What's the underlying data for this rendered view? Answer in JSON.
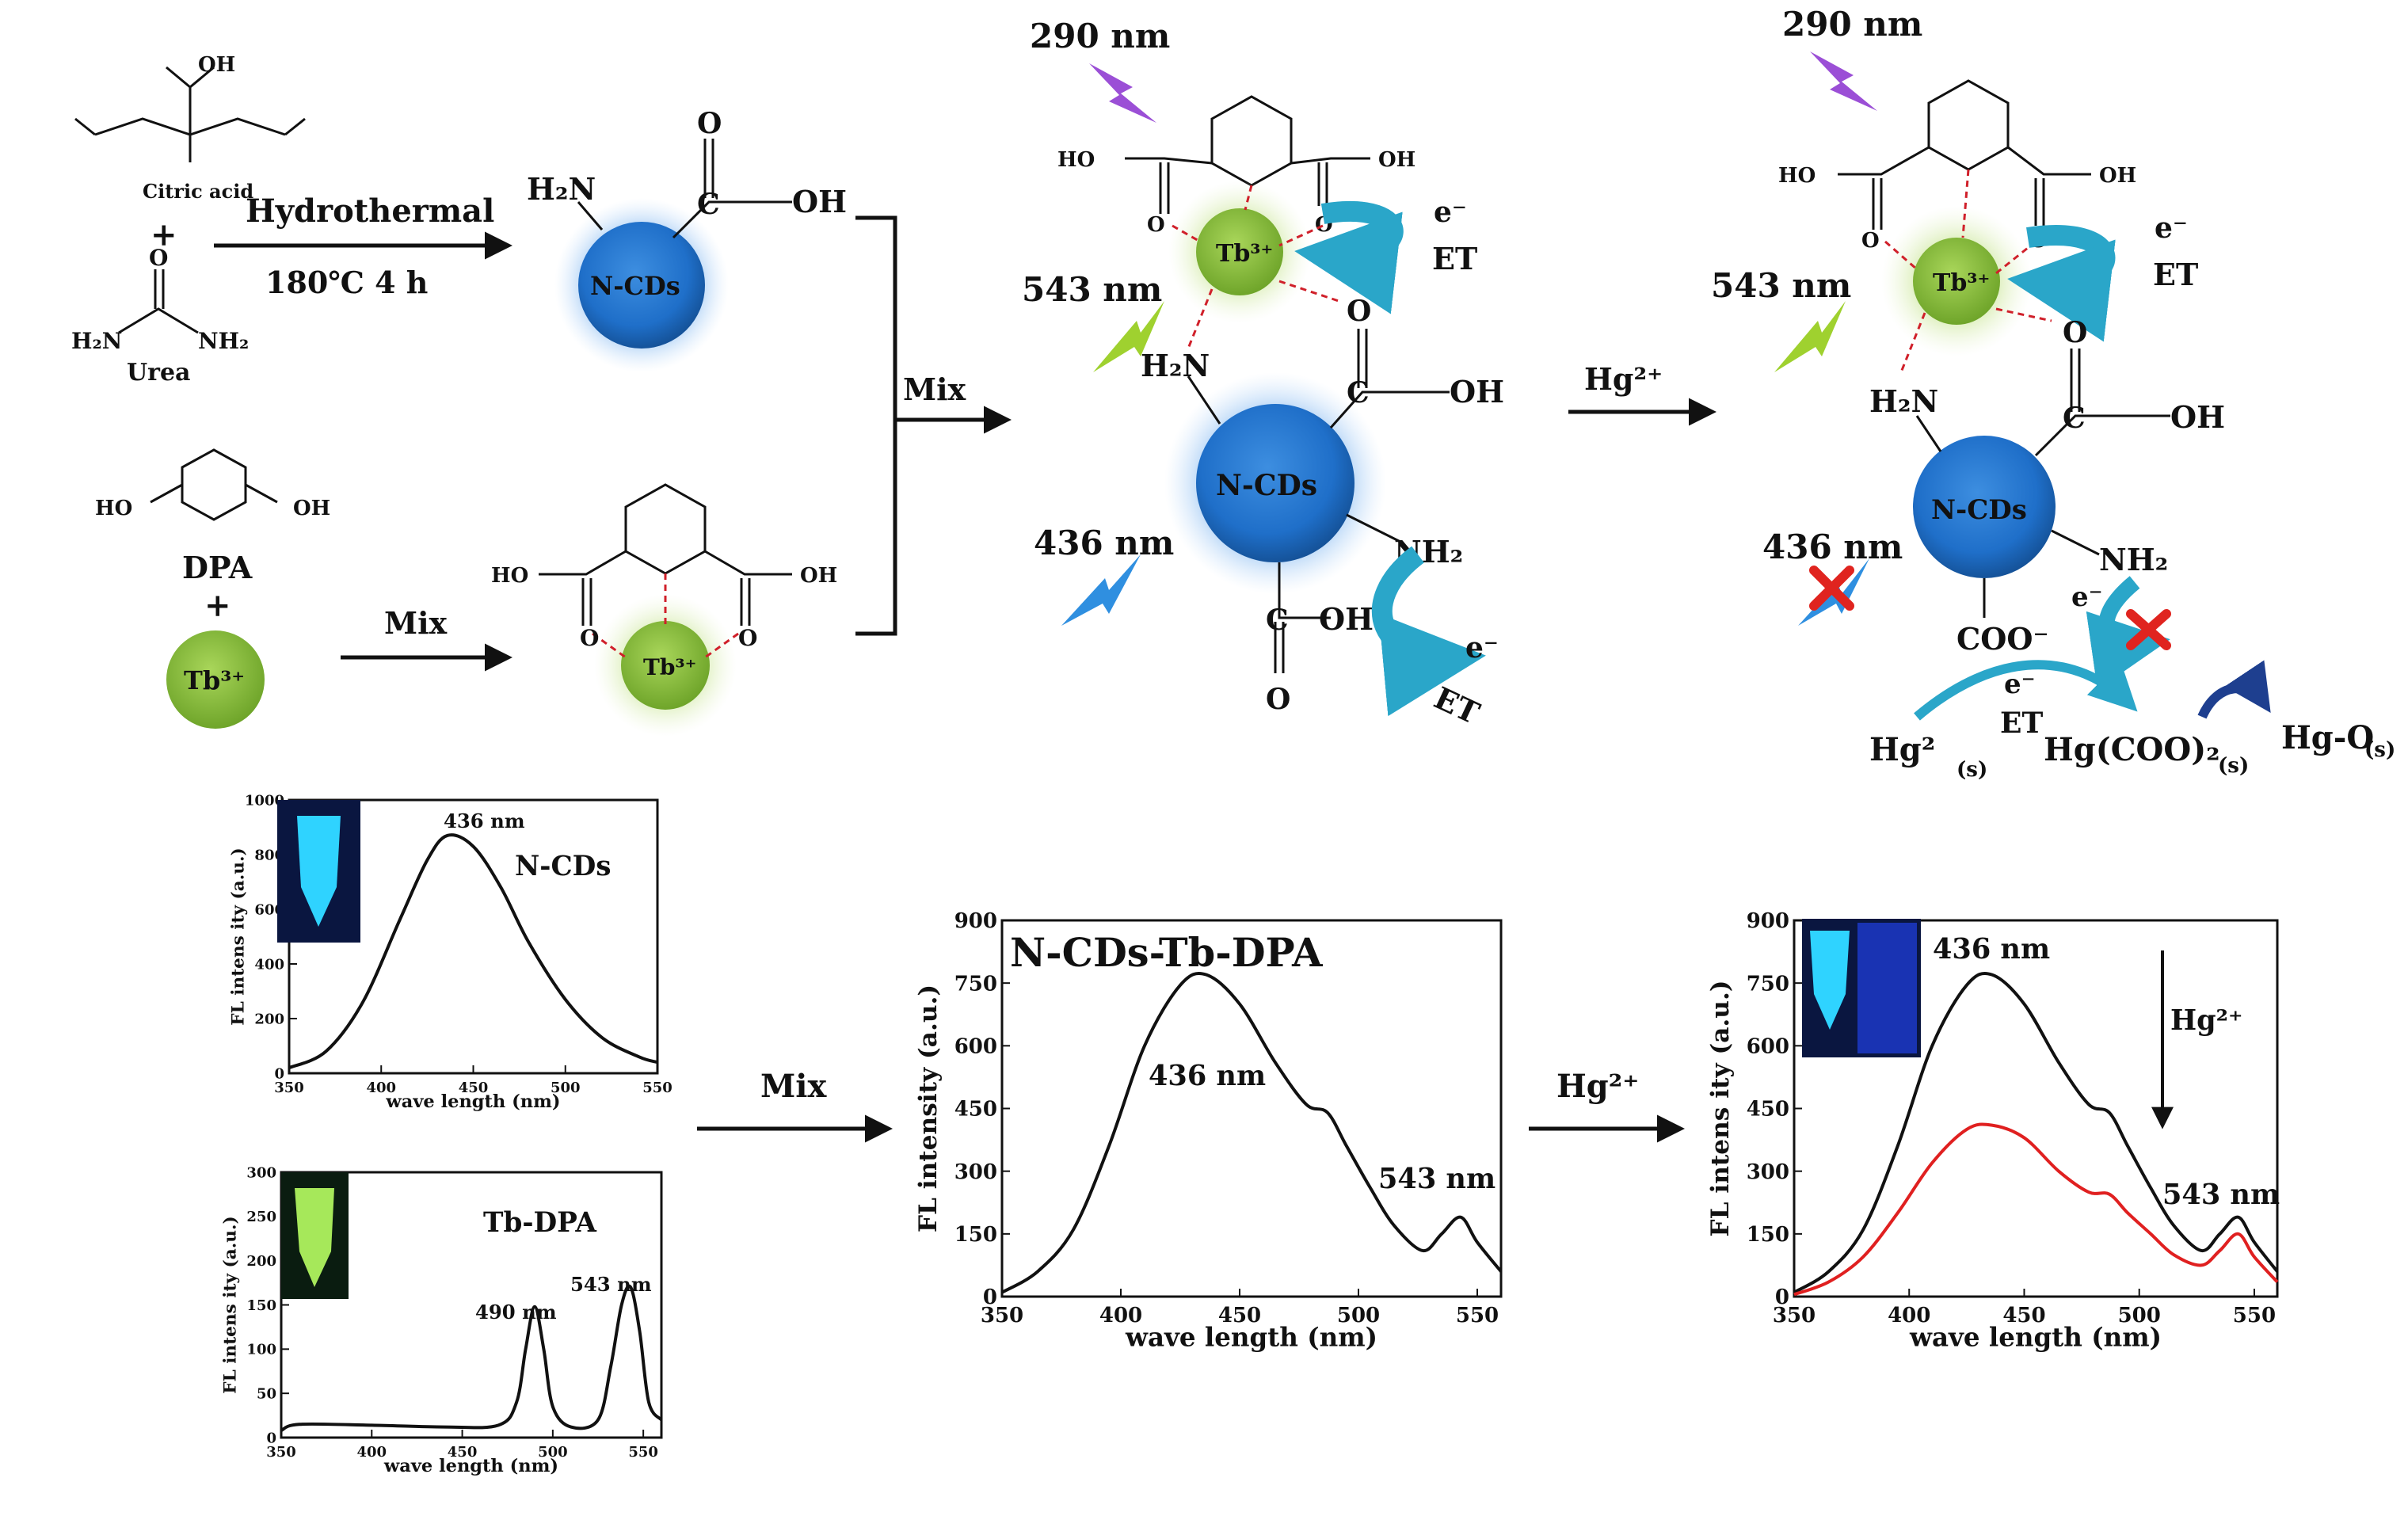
{
  "scheme": {
    "reagents": {
      "citric_acid": "Citric acid",
      "urea": "Urea",
      "dpa": "DPA",
      "plus": "+",
      "oh": "OH",
      "ho": "HO",
      "h2n": "H₂N",
      "nh2": "NH₂",
      "o": "O",
      "c": "C",
      "n": "N"
    },
    "steps": {
      "hydrothermal": "Hydrothermal",
      "conditions": "180℃   4 h",
      "mix1": "Mix",
      "mix2": "Mix",
      "hg_arrow": "Hg²⁺"
    },
    "labels": {
      "ncds": "N-CDs",
      "tb": "Tb³⁺",
      "excitation": "290 nm",
      "tb_emission": "543 nm",
      "cd_emission": "436 nm",
      "electron": "e⁻",
      "et": "ET",
      "coo": "COO⁻",
      "hg2": "Hg²",
      "hg2_sub": "(s)",
      "hgcoo": "Hg(COO)₂",
      "hgcoo_sub": "(s)",
      "hgo": "Hg-O",
      "hgo_sub": "(s)"
    },
    "bottom_arrows": {
      "mix": "Mix",
      "hg": "Hg²⁺"
    }
  },
  "colors": {
    "ncds_blue": "#1f6fc9",
    "tb_green": "#8cc63f",
    "bolt_purple": "#9b4fd6",
    "bolt_green": "#9fd12f",
    "bolt_blue": "#2f8fe0",
    "et_arrow": "#2aa6c9",
    "red_x": "#e0241f",
    "dark_curve": "#111111",
    "red_curve": "#e02020"
  },
  "chart_data": [
    {
      "type": "line",
      "title": "N-CDs",
      "xlabel": "wave length (nm)",
      "ylabel": "FL intens ity (a.u.)",
      "xlim": [
        350,
        550
      ],
      "ylim": [
        0,
        1000
      ],
      "xticks": [
        "350",
        "400",
        "450",
        "500",
        "550"
      ],
      "yticks": [
        "0",
        "200",
        "400",
        "600",
        "800",
        "1000"
      ],
      "annotations": [
        "436 nm"
      ],
      "series": [
        {
          "x": [
            350,
            370,
            390,
            410,
            425,
            436,
            450,
            465,
            480,
            500,
            520,
            540,
            550
          ],
          "y": [
            20,
            80,
            260,
            560,
            780,
            870,
            830,
            680,
            480,
            270,
            130,
            60,
            40
          ]
        }
      ]
    },
    {
      "type": "line",
      "title": "Tb-DPA",
      "xlabel": "wave length (nm)",
      "ylabel": "FL intens ity (a.u.)",
      "xlim": [
        350,
        560
      ],
      "ylim": [
        0,
        300
      ],
      "xticks": [
        "350",
        "400",
        "450",
        "500",
        "550"
      ],
      "yticks": [
        "0",
        "50",
        "100",
        "150",
        "200",
        "250",
        "300"
      ],
      "annotations": [
        "490 nm",
        "543 nm"
      ],
      "series": [
        {
          "x": [
            350,
            360,
            400,
            440,
            470,
            480,
            485,
            490,
            495,
            500,
            510,
            525,
            532,
            538,
            543,
            548,
            553,
            560
          ],
          "y": [
            8,
            15,
            14,
            12,
            14,
            40,
            100,
            148,
            100,
            35,
            12,
            20,
            80,
            150,
            170,
            120,
            40,
            20
          ]
        }
      ]
    },
    {
      "type": "line",
      "title": "N-CDs-Tb-DPA",
      "xlabel": "wave length (nm)",
      "ylabel": "FL intensity (a.u.)",
      "xlim": [
        350,
        560
      ],
      "ylim": [
        0,
        900
      ],
      "xticks": [
        "350",
        "400",
        "450",
        "500",
        "550"
      ],
      "yticks": [
        "0",
        "150",
        "300",
        "450",
        "600",
        "750",
        "900"
      ],
      "annotations": [
        "436 nm",
        "543 nm"
      ],
      "series": [
        {
          "x": [
            350,
            365,
            380,
            395,
            410,
            425,
            436,
            450,
            465,
            478,
            487,
            495,
            505,
            515,
            527,
            535,
            543,
            550,
            560
          ],
          "y": [
            10,
            60,
            160,
            360,
            600,
            745,
            770,
            700,
            560,
            460,
            440,
            360,
            260,
            170,
            110,
            150,
            190,
            130,
            60
          ]
        }
      ]
    },
    {
      "type": "line",
      "xlabel": "wave length (nm)",
      "ylabel": "FL intens ity (a.u.)",
      "xlim": [
        350,
        560
      ],
      "ylim": [
        0,
        900
      ],
      "xticks": [
        "350",
        "400",
        "450",
        "500",
        "550"
      ],
      "yticks": [
        "0",
        "150",
        "300",
        "450",
        "600",
        "750",
        "900"
      ],
      "annotations": [
        "436 nm",
        "543 nm",
        "Hg²⁺"
      ],
      "series": [
        {
          "x": [
            350,
            365,
            380,
            395,
            410,
            425,
            436,
            450,
            465,
            478,
            487,
            495,
            505,
            515,
            527,
            535,
            543,
            550,
            560
          ],
          "y": [
            10,
            60,
            160,
            360,
            600,
            745,
            770,
            700,
            560,
            460,
            440,
            360,
            260,
            170,
            110,
            150,
            190,
            130,
            60
          ]
        },
        {
          "x": [
            350,
            365,
            380,
            395,
            410,
            425,
            436,
            450,
            465,
            478,
            487,
            495,
            505,
            515,
            527,
            535,
            543,
            550,
            560
          ],
          "y": [
            5,
            35,
            95,
            200,
            320,
            400,
            410,
            380,
            300,
            250,
            245,
            200,
            150,
            100,
            75,
            110,
            150,
            95,
            35
          ]
        }
      ]
    }
  ]
}
